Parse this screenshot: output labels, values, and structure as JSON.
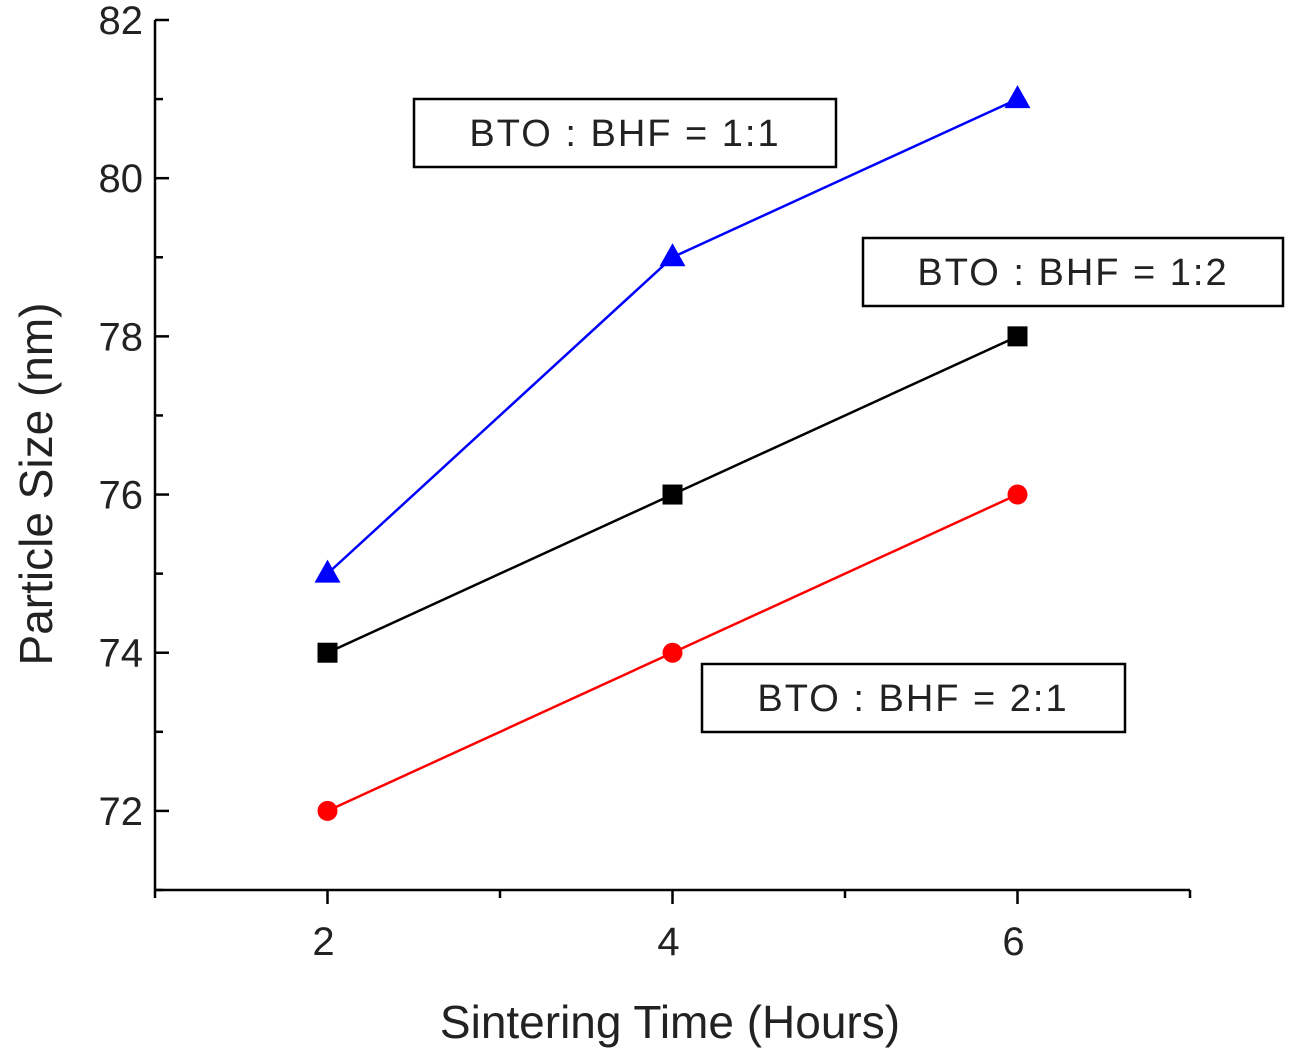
{
  "chart_data": {
    "type": "line",
    "xlabel": "Sintering Time (Hours)",
    "ylabel": "Particle Size (nm)",
    "xlim": [
      1,
      7
    ],
    "ylim": [
      71,
      82
    ],
    "x_ticks": [
      2,
      4,
      6
    ],
    "y_ticks": [
      72,
      74,
      76,
      78,
      80,
      82
    ],
    "grid": false,
    "series": [
      {
        "name": "BTO : BHF = 1:1",
        "x": [
          2,
          4,
          6
        ],
        "values": [
          75,
          79,
          81
        ],
        "color": "#0000ff",
        "marker": "triangle"
      },
      {
        "name": "BTO : BHF = 1:2",
        "x": [
          2,
          4,
          6
        ],
        "values": [
          74,
          76,
          78
        ],
        "color": "#000000",
        "marker": "square"
      },
      {
        "name": "BTO : BHF = 2:1",
        "x": [
          2,
          4,
          6
        ],
        "values": [
          72,
          74,
          76
        ],
        "color": "#ff0000",
        "marker": "circle"
      }
    ]
  }
}
